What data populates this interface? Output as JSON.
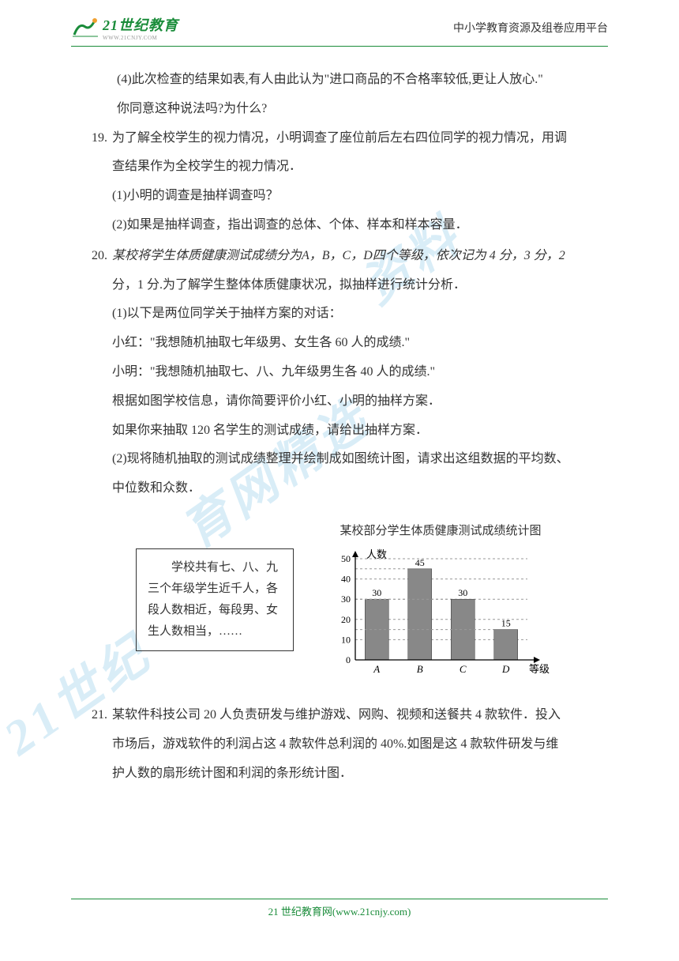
{
  "header": {
    "logo_text": "21世纪教育",
    "logo_sub": "WWW.21CNJY.COM",
    "right_text": "中小学教育资源及组卷应用平台"
  },
  "watermark": {
    "wm1": "资料",
    "wm2": "育网精选",
    "wm3": "21世纪"
  },
  "content": {
    "p1": "(4)此次检查的结果如表,有人由此认为\"进口商品的不合格率较低,更让人放心.\"",
    "p2": "你同意这种说法吗?为什么?",
    "q19_num": "19.",
    "q19_l1": "为了解全校学生的视力情况，小明调查了座位前后左右四位同学的视力情况，用调",
    "q19_l2": "查结果作为全校学生的视力情况．",
    "q19_s1": "(1)小明的调查是抽样调查吗？",
    "q19_s2": "(2)如果是抽样调查，指出调查的总体、个体、样本和样本容量．",
    "q20_num": "20.",
    "q20_l1": "某校将学生体质健康测试成绩分为A，B，C，D四个等级，依次记为 4 分，3 分，2",
    "q20_l2": "分，1 分.为了解学生整体体质健康状况，拟抽样进行统计分析．",
    "q20_s1": "(1)以下是两位同学关于抽样方案的对话：",
    "q20_s2": "小红：\"我想随机抽取七年级男、女生各 60 人的成绩.\"",
    "q20_s3": "小明：\"我想随机抽取七、八、九年级男生各 40 人的成绩.\"",
    "q20_s4": "根据如图学校信息，请你简要评价小红、小明的抽样方案．",
    "q20_s5": "如果你来抽取 120 名学生的测试成绩，请给出抽样方案．",
    "q20_s6": "(2)现将随机抽取的测试成绩整理并绘制成如图统计图，请求出这组数据的平均数、",
    "q20_s7": "中位数和众数．",
    "info_box": "　　学校共有七、八、九三个年级学生近千人，各段人数相近，每段男、女生人数相当，……",
    "chart_title": "某校部分学生体质健康测试成绩统计图",
    "chart": {
      "type": "bar",
      "categories": [
        "A",
        "B",
        "C",
        "D"
      ],
      "values": [
        30,
        45,
        30,
        15
      ],
      "y_label": "人数",
      "x_label": "等级",
      "ylim": [
        0,
        50
      ],
      "ytick_step": 10,
      "bar_color": "#888888",
      "grid_dash": "3,3",
      "axis_color": "#000000",
      "label_color": "#000000"
    },
    "q21_num": "21.",
    "q21_l1": "某软件科技公司 20 人负责研发与维护游戏、网购、视频和送餐共 4 款软件．投入",
    "q21_l2": "市场后，游戏软件的利润占这 4 款软件总利润的 40%.如图是这 4 款软件研发与维",
    "q21_l3": "护人数的扇形统计图和利润的条形统计图．"
  },
  "footer": {
    "text": "21 世纪教育网(www.21cnjy.com)"
  }
}
